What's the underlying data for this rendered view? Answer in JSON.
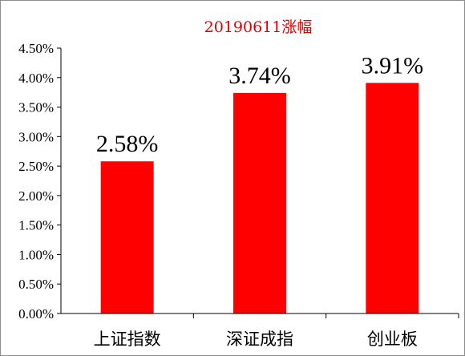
{
  "chart_data": {
    "type": "bar",
    "title": "20190611涨幅",
    "categories": [
      "上证指数",
      "深证成指",
      "创业板"
    ],
    "values": [
      2.58,
      3.74,
      3.91
    ],
    "data_labels": [
      "2.58%",
      "3.74%",
      "3.91%"
    ],
    "yticks": [
      "0.00%",
      "0.50%",
      "1.00%",
      "1.50%",
      "2.00%",
      "2.50%",
      "3.00%",
      "3.50%",
      "4.00%",
      "4.50%"
    ],
    "ylim": [
      0,
      4.5
    ],
    "xlabel": "",
    "ylabel": "",
    "grid": false,
    "legend": "none",
    "bar_color": "#ff0000",
    "title_color": "#e00000"
  }
}
